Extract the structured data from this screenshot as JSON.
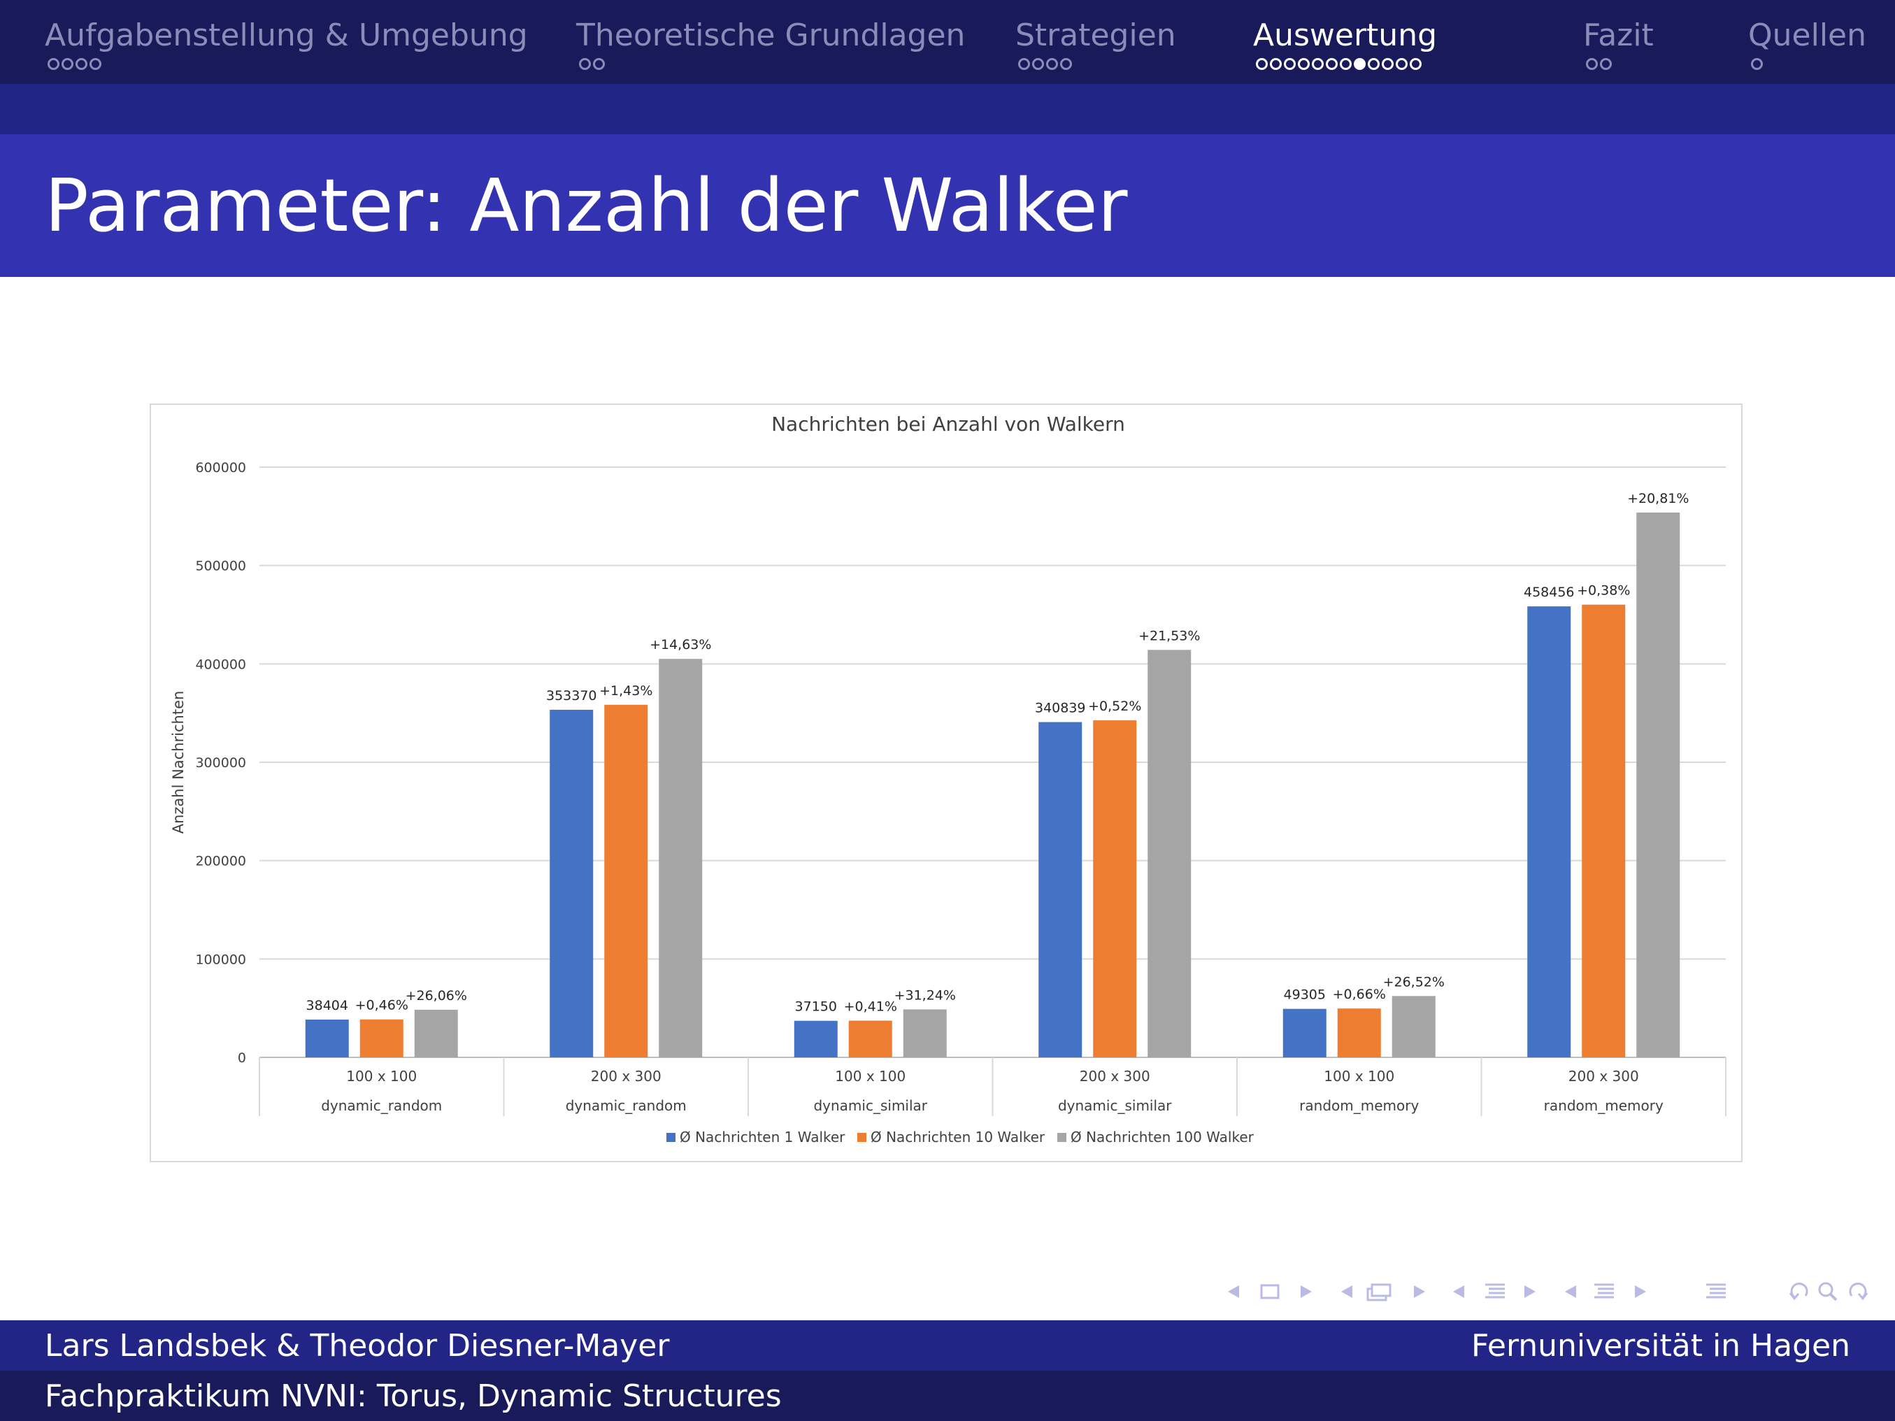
{
  "nav": {
    "sections": [
      {
        "label": "Aufgabenstellung & Umgebung",
        "dots": 4,
        "filled": -1,
        "active": false
      },
      {
        "label": "Theoretische Grundlagen",
        "dots": 2,
        "filled": -1,
        "active": false
      },
      {
        "label": "Strategien",
        "dots": 4,
        "filled": -1,
        "active": false
      },
      {
        "label": "Auswertung",
        "dots": 12,
        "filled": 7,
        "active": true
      },
      {
        "label": "Fazit",
        "dots": 2,
        "filled": -1,
        "active": false
      },
      {
        "label": "Quellen",
        "dots": 1,
        "filled": -1,
        "active": false
      }
    ]
  },
  "slide": {
    "title": "Parameter: Anzahl der Walker"
  },
  "footer": {
    "authors": "Lars Landsbek & Theodor Diesner-Mayer",
    "institution": "Fernuniversität in Hagen",
    "course": "Fachpraktikum NVNI: Torus, Dynamic Structures"
  },
  "navsymbols": {
    "icons": [
      "arrow-left-icon",
      "frame-icon",
      "arrow-right-icon",
      "arrow-left-icon",
      "subsection-icon",
      "arrow-right-icon",
      "arrow-left-icon",
      "section-icon",
      "arrow-right-icon",
      "arrow-left-icon",
      "document-icon",
      "arrow-right-icon",
      "appendix-icon",
      "undo-icon",
      "search-icon",
      "redo-icon"
    ],
    "color": "#b9bbe4"
  },
  "chart_data": {
    "type": "bar",
    "title": "Nachrichten bei Anzahl von Walkern",
    "ylabel": "Anzahl Nachrichten",
    "xlabel": "",
    "ylim": [
      0,
      600000
    ],
    "yticks": [
      0,
      100000,
      200000,
      300000,
      400000,
      500000,
      600000
    ],
    "ytick_labels": [
      "0",
      "100000",
      "200000",
      "300000",
      "400000",
      "500000",
      "600000"
    ],
    "grid": true,
    "legend_position": "bottom",
    "categories": [
      {
        "size": "100 x 100",
        "strategy": "dynamic_random"
      },
      {
        "size": "200 x 300",
        "strategy": "dynamic_random"
      },
      {
        "size": "100 x 100",
        "strategy": "dynamic_similar"
      },
      {
        "size": "200 x 300",
        "strategy": "dynamic_similar"
      },
      {
        "size": "100 x 100",
        "strategy": "random_memory"
      },
      {
        "size": "200 x 300",
        "strategy": "random_memory"
      }
    ],
    "series": [
      {
        "name": "Ø Nachrichten 1 Walker",
        "color": "#4472c4",
        "values": [
          38404,
          353370,
          37150,
          340839,
          49305,
          458456
        ],
        "labels": [
          "38404",
          "353370",
          "37150",
          "340839",
          "49305",
          "458456"
        ]
      },
      {
        "name": "Ø Nachrichten 10 Walker",
        "color": "#ed7d31",
        "values": [
          38581,
          358423,
          37302,
          342611,
          49630,
          460198
        ],
        "labels": [
          "+0,46%",
          "+1,43%",
          "+0,41%",
          "+0,52%",
          "+0,66%",
          "+0,38%"
        ]
      },
      {
        "name": "Ø Nachrichten 100 Walker",
        "color": "#a5a5a5",
        "values": [
          48412,
          405069,
          48751,
          414223,
          62381,
          553862
        ],
        "labels": [
          "+26,06%",
          "+14,63%",
          "+31,24%",
          "+21,53%",
          "+26,52%",
          "+20,81%"
        ]
      }
    ]
  }
}
